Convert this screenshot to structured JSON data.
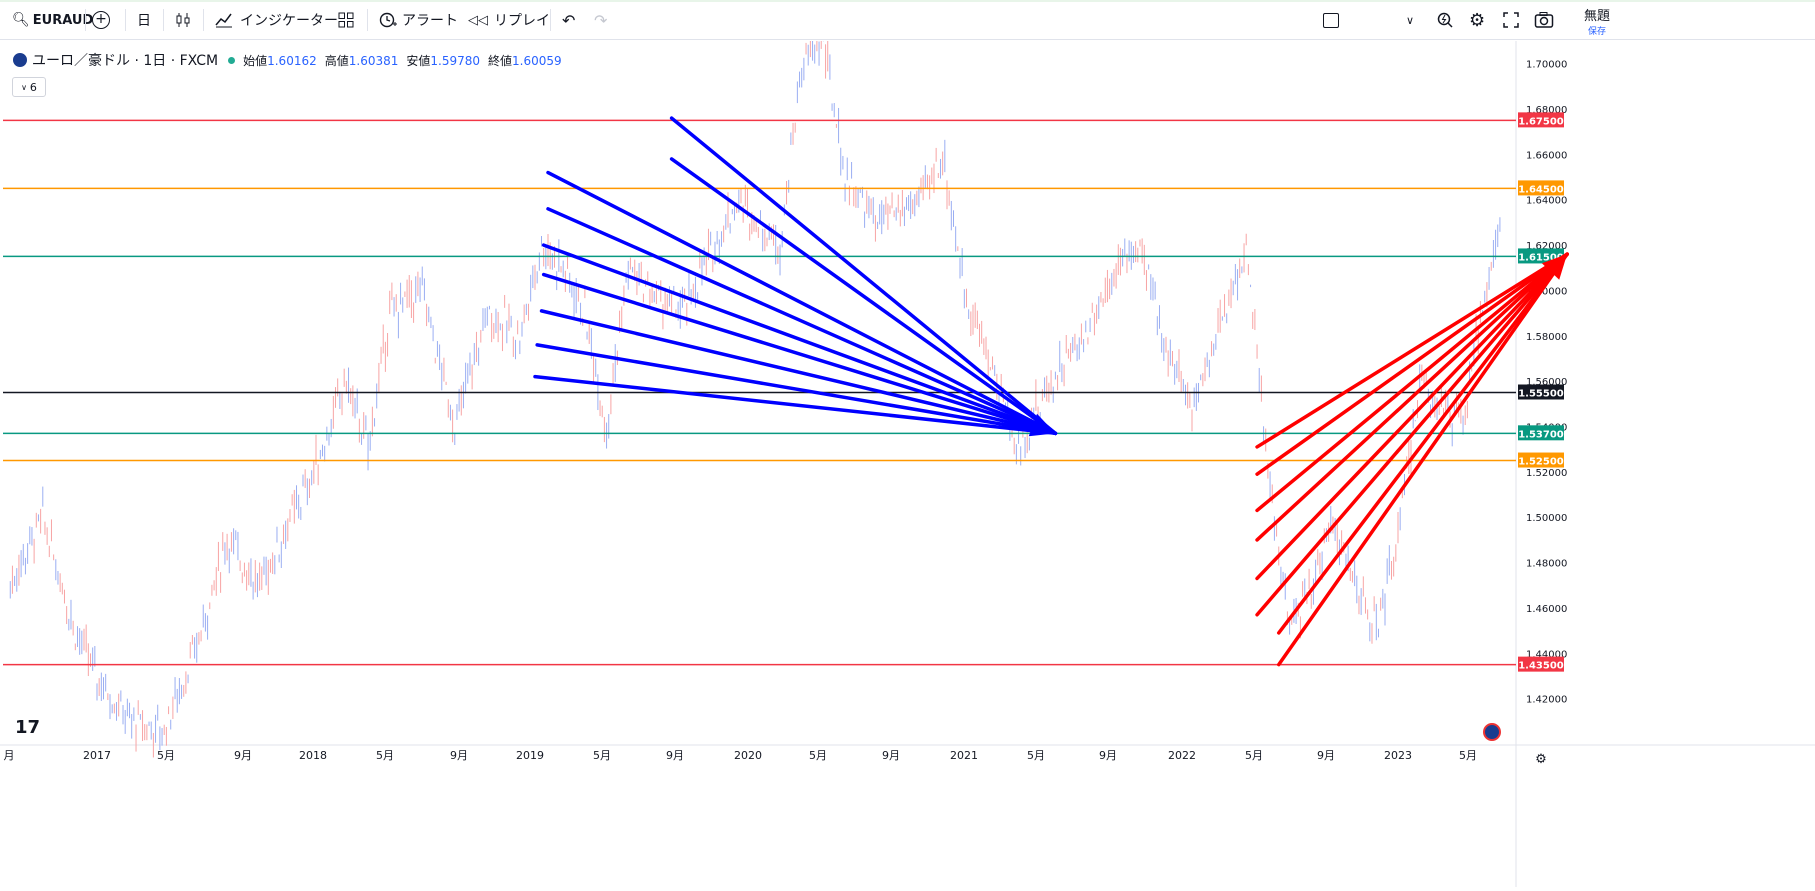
{
  "toolbar": {
    "symbol": "EURAUD",
    "interval": "日",
    "indicators_label": "インジケーター",
    "alert_label": "アラート",
    "replay_label": "リプレイ",
    "layout_title": "無題",
    "layout_sub": "保存"
  },
  "legend": {
    "title": "ユーロ／豪ドル · 1日 · FXCM",
    "open_label": "始値",
    "open": "1.60162",
    "high_label": "高値",
    "high": "1.60381",
    "low_label": "安値",
    "low": "1.59780",
    "close_label": "終値",
    "close": "1.60059",
    "collapse_count": "6"
  },
  "colors": {
    "red": "#f23645",
    "orange": "#ff9800",
    "green": "#089981",
    "black": "#131722",
    "blue_arrow": "#0000ff",
    "red_arrow": "#ff0000",
    "candle_up": "#f7a4a4",
    "candle_down": "#9aaef2"
  },
  "chart_data": {
    "type": "line",
    "ylim": [
      1.4,
      1.71
    ],
    "y_ticks": [
      "1.70000",
      "1.68000",
      "1.66000",
      "1.64000",
      "1.62000",
      "1.60000",
      "1.58000",
      "1.56000",
      "1.54000",
      "1.52000",
      "1.50000",
      "1.48000",
      "1.46000",
      "1.44000",
      "1.42000"
    ],
    "x_labels": [
      "月",
      "2017",
      "5月",
      "9月",
      "2018",
      "5月",
      "9月",
      "2019",
      "5月",
      "9月",
      "2020",
      "5月",
      "9月",
      "2021",
      "5月",
      "9月",
      "2022",
      "5月",
      "9月",
      "2023",
      "5月"
    ],
    "horizontal_levels": [
      {
        "value": 1.675,
        "label": "1.67500",
        "color": "red"
      },
      {
        "value": 1.645,
        "label": "1.64500",
        "color": "orange"
      },
      {
        "value": 1.615,
        "label": "1.61500",
        "color": "green"
      },
      {
        "value": 1.555,
        "label": "1.55500",
        "color": "black"
      },
      {
        "value": 1.537,
        "label": "1.53700",
        "color": "green"
      },
      {
        "value": 1.525,
        "label": "1.52500",
        "color": "orange"
      },
      {
        "value": 1.435,
        "label": "1.43500",
        "color": "red"
      }
    ],
    "price_path": [
      [
        2016.6,
        1.47
      ],
      [
        2016.75,
        1.5
      ],
      [
        2016.9,
        1.45
      ],
      [
        2017.0,
        1.43
      ],
      [
        2017.15,
        1.41
      ],
      [
        2017.3,
        1.405
      ],
      [
        2017.45,
        1.44
      ],
      [
        2017.6,
        1.49
      ],
      [
        2017.75,
        1.47
      ],
      [
        2017.9,
        1.5
      ],
      [
        2018.0,
        1.52
      ],
      [
        2018.15,
        1.56
      ],
      [
        2018.25,
        1.53
      ],
      [
        2018.35,
        1.59
      ],
      [
        2018.5,
        1.6
      ],
      [
        2018.65,
        1.54
      ],
      [
        2018.8,
        1.59
      ],
      [
        2018.95,
        1.58
      ],
      [
        2019.05,
        1.62
      ],
      [
        2019.15,
        1.61
      ],
      [
        2019.25,
        1.59
      ],
      [
        2019.35,
        1.54
      ],
      [
        2019.45,
        1.61
      ],
      [
        2019.55,
        1.6
      ],
      [
        2019.7,
        1.59
      ],
      [
        2019.85,
        1.62
      ],
      [
        2019.95,
        1.64
      ],
      [
        2020.05,
        1.63
      ],
      [
        2020.15,
        1.62
      ],
      [
        2020.25,
        1.7
      ],
      [
        2020.35,
        1.71
      ],
      [
        2020.45,
        1.65
      ],
      [
        2020.6,
        1.63
      ],
      [
        2020.8,
        1.64
      ],
      [
        2020.9,
        1.66
      ],
      [
        2021.0,
        1.6
      ],
      [
        2021.15,
        1.56
      ],
      [
        2021.25,
        1.53
      ],
      [
        2021.4,
        1.56
      ],
      [
        2021.55,
        1.58
      ],
      [
        2021.7,
        1.61
      ],
      [
        2021.8,
        1.62
      ],
      [
        2021.95,
        1.57
      ],
      [
        2022.05,
        1.55
      ],
      [
        2022.2,
        1.59
      ],
      [
        2022.3,
        1.62
      ],
      [
        2022.4,
        1.52
      ],
      [
        2022.5,
        1.45
      ],
      [
        2022.6,
        1.47
      ],
      [
        2022.7,
        1.5
      ],
      [
        2022.8,
        1.47
      ],
      [
        2022.9,
        1.45
      ],
      [
        2023.0,
        1.49
      ],
      [
        2023.1,
        1.56
      ],
      [
        2023.2,
        1.55
      ],
      [
        2023.3,
        1.54
      ],
      [
        2023.4,
        1.6
      ],
      [
        2023.5,
        1.64
      ],
      [
        2023.6,
        1.675
      ],
      [
        2023.7,
        1.635
      ],
      [
        2023.75,
        1.6
      ]
    ],
    "blue_arrows": {
      "target": [
        2021.42,
        1.537
      ],
      "starts": [
        [
          2019.65,
          1.676
        ],
        [
          2019.65,
          1.658
        ],
        [
          2019.08,
          1.652
        ],
        [
          2019.08,
          1.636
        ],
        [
          2019.06,
          1.62
        ],
        [
          2019.06,
          1.607
        ],
        [
          2019.05,
          1.591
        ],
        [
          2019.03,
          1.576
        ],
        [
          2019.02,
          1.562
        ]
      ]
    },
    "red_arrows": {
      "target": [
        2023.78,
        1.616
      ],
      "starts": [
        [
          2022.35,
          1.531
        ],
        [
          2022.35,
          1.519
        ],
        [
          2022.35,
          1.503
        ],
        [
          2022.35,
          1.49
        ],
        [
          2022.35,
          1.473
        ],
        [
          2022.35,
          1.457
        ],
        [
          2022.45,
          1.449
        ],
        [
          2022.45,
          1.435
        ]
      ]
    }
  }
}
